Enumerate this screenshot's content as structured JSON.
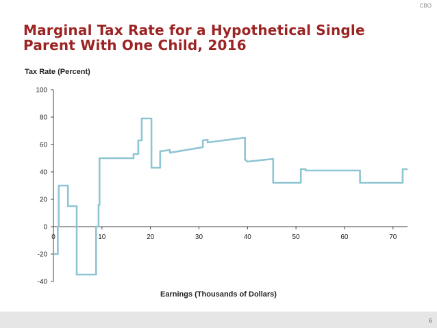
{
  "header": {
    "corner_tag": "CBO"
  },
  "footer": {
    "page_number": "6"
  },
  "colors": {
    "title": "#9b2423",
    "series": "#8ec5d2",
    "axis": "#404040"
  },
  "chart_data": {
    "type": "line",
    "title": "Marginal Tax Rate for a Hypothetical Single Parent With One Child, 2016",
    "ylabel": "Tax Rate (Percent)",
    "xlabel": "Earnings (Thousands of Dollars)",
    "xlim": [
      0,
      73
    ],
    "ylim": [
      -40,
      100
    ],
    "xticks": [
      0,
      10,
      20,
      30,
      40,
      50,
      60,
      70
    ],
    "yticks": [
      -40,
      -20,
      0,
      20,
      40,
      60,
      80,
      100
    ],
    "grid": false,
    "series": [
      {
        "name": "Marginal Tax Rate",
        "points": [
          [
            0,
            -20
          ],
          [
            0.9,
            -20
          ],
          [
            0.9,
            0
          ],
          [
            1.1,
            0
          ],
          [
            1.1,
            30
          ],
          [
            3,
            30
          ],
          [
            3,
            15
          ],
          [
            4.8,
            15
          ],
          [
            4.8,
            -35
          ],
          [
            8.8,
            -35
          ],
          [
            8.8,
            0
          ],
          [
            9.3,
            0
          ],
          [
            9.3,
            16
          ],
          [
            9.5,
            16
          ],
          [
            9.5,
            50
          ],
          [
            16.5,
            50
          ],
          [
            16.5,
            53
          ],
          [
            17.5,
            53
          ],
          [
            17.5,
            63
          ],
          [
            18.2,
            63
          ],
          [
            18.2,
            79
          ],
          [
            20.2,
            79
          ],
          [
            20.2,
            43
          ],
          [
            22,
            43
          ],
          [
            22,
            55
          ],
          [
            24,
            56
          ],
          [
            24,
            54
          ],
          [
            30.8,
            58
          ],
          [
            30.8,
            63
          ],
          [
            31.8,
            63.5
          ],
          [
            31.8,
            61.5
          ],
          [
            39.5,
            65
          ],
          [
            39.5,
            49
          ],
          [
            40,
            47.5
          ],
          [
            45.3,
            49.5
          ],
          [
            45.3,
            32
          ],
          [
            51,
            32
          ],
          [
            51,
            42
          ],
          [
            52,
            42
          ],
          [
            52,
            41
          ],
          [
            63.2,
            41
          ],
          [
            63.2,
            32
          ],
          [
            72,
            32
          ],
          [
            72,
            42
          ],
          [
            73,
            42
          ]
        ]
      }
    ]
  }
}
